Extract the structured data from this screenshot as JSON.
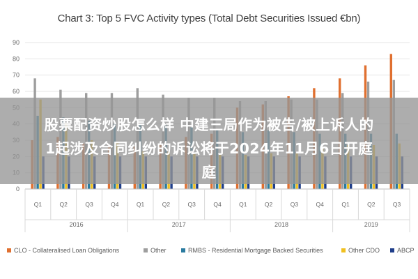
{
  "chart_data": {
    "type": "bar",
    "title": "Chart 3: Top 5 FVC Activity types (Total Debt Securities Issued €bn)",
    "ylim": [
      0,
      90
    ],
    "y_ticks": [
      "0",
      "10",
      "20",
      "30",
      "40",
      "50",
      "60",
      "70",
      "80",
      "90"
    ],
    "grid": true,
    "legend_position": "bottom",
    "categories": [
      "Q1",
      "Q2",
      "Q3",
      "Q4",
      "Q1",
      "Q2",
      "Q3",
      "Q4",
      "Q1",
      "Q2",
      "Q3",
      "Q4",
      "Q1",
      "Q2",
      "Q3"
    ],
    "year_groups": [
      {
        "label": "2016",
        "span": 4
      },
      {
        "label": "2017",
        "span": 4
      },
      {
        "label": "2018",
        "span": 4
      },
      {
        "label": "2019",
        "span": 3
      }
    ],
    "series": [
      {
        "name": "CLO - Collateralised Loan Obligations",
        "color": "#e07030",
        "values": [
          30,
          32,
          28,
          27,
          26,
          28,
          32,
          34,
          50,
          52,
          57,
          62,
          68,
          76,
          83
        ]
      },
      {
        "name": "Other",
        "color": "#9e9e9e",
        "values": [
          68,
          61,
          59,
          59,
          62,
          58,
          56,
          56,
          54,
          54,
          55,
          55,
          59,
          66,
          67
        ]
      },
      {
        "name": "RMBS - Residential Mortgage Backed Securities",
        "color": "#2a7ba0",
        "values": [
          45,
          44,
          42,
          40,
          40,
          39,
          38,
          36,
          35,
          36,
          35,
          34,
          34,
          34,
          34
        ]
      },
      {
        "name": "Other CDO",
        "color": "#f0c020",
        "values": [
          55,
          40,
          30,
          29,
          23,
          23,
          22,
          22,
          21,
          22,
          22,
          26,
          27,
          27,
          28
        ]
      },
      {
        "name": "ABCP",
        "color": "#1f3e8a",
        "values": [
          20,
          20,
          20,
          20,
          20,
          20,
          20,
          20,
          20,
          20,
          20,
          20,
          20,
          20,
          20
        ]
      }
    ]
  },
  "overlay": {
    "lines": [
      "股票配资炒股怎么样 中建三局作为被告/被上诉人的",
      "1起涉及合同纠纷的诉讼将于2024年11月6日开庭",
      "庭"
    ]
  }
}
